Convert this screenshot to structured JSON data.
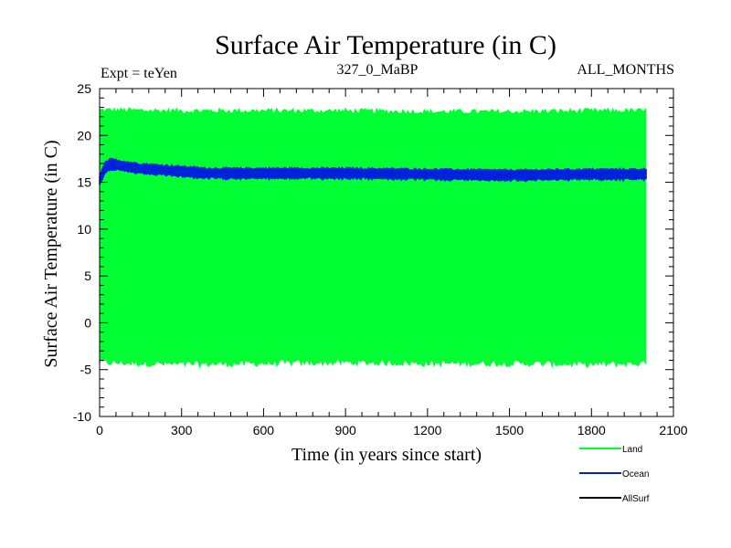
{
  "chart_data": {
    "type": "area",
    "title": "Surface Air Temperature (in C)",
    "subtitle_left": "Expt = teYen",
    "subtitle_center": "327_0_MaBP",
    "subtitle_right": "ALL_MONTHS",
    "xlabel": "Time (in years since start)",
    "ylabel": "Surface Air Temperature (in C)",
    "xlim": [
      0,
      2100
    ],
    "ylim": [
      -10,
      25
    ],
    "x_ticks": [
      0,
      300,
      600,
      900,
      1200,
      1500,
      1800,
      2100
    ],
    "y_ticks": [
      -10,
      -5,
      0,
      5,
      10,
      15,
      20,
      25
    ],
    "x_tick_labels": [
      "0",
      "300",
      "600",
      "900",
      "1200",
      "1500",
      "1800",
      "2100"
    ],
    "y_tick_labels": [
      "-10",
      "-5",
      "0",
      "5",
      "10",
      "15",
      "20",
      "25"
    ],
    "grid": false,
    "legend_position": "bottom-right outside",
    "series": [
      {
        "name": "Land",
        "color": "#00ff33",
        "style": "seasonal band",
        "x_range": [
          0,
          2000
        ],
        "band_max": 23,
        "band_min": -4.3,
        "envelope_x": [
          0,
          300,
          600,
          900,
          1200,
          1500,
          1800,
          2000
        ],
        "envelope_upper": [
          22.7,
          22.6,
          22.6,
          22.6,
          22.5,
          22.5,
          22.6,
          22.6
        ],
        "envelope_lower": [
          -4.2,
          -4.4,
          -4.3,
          -4.2,
          -4.3,
          -4.3,
          -4.4,
          -4.3
        ]
      },
      {
        "name": "Ocean",
        "color": "#0022dd",
        "style": "thick noisy line",
        "x": [
          0,
          20,
          40,
          60,
          100,
          150,
          200,
          300,
          400,
          600,
          900,
          1200,
          1500,
          1800,
          2000
        ],
        "values": [
          15.2,
          16.6,
          17.0,
          16.9,
          16.7,
          16.5,
          16.4,
          16.2,
          16.0,
          16.0,
          16.0,
          15.9,
          15.8,
          15.9,
          15.9
        ],
        "noise_amplitude": 0.45
      },
      {
        "name": "AllSurf",
        "color": "#000000",
        "style": "line",
        "x": [],
        "values": []
      }
    ]
  }
}
